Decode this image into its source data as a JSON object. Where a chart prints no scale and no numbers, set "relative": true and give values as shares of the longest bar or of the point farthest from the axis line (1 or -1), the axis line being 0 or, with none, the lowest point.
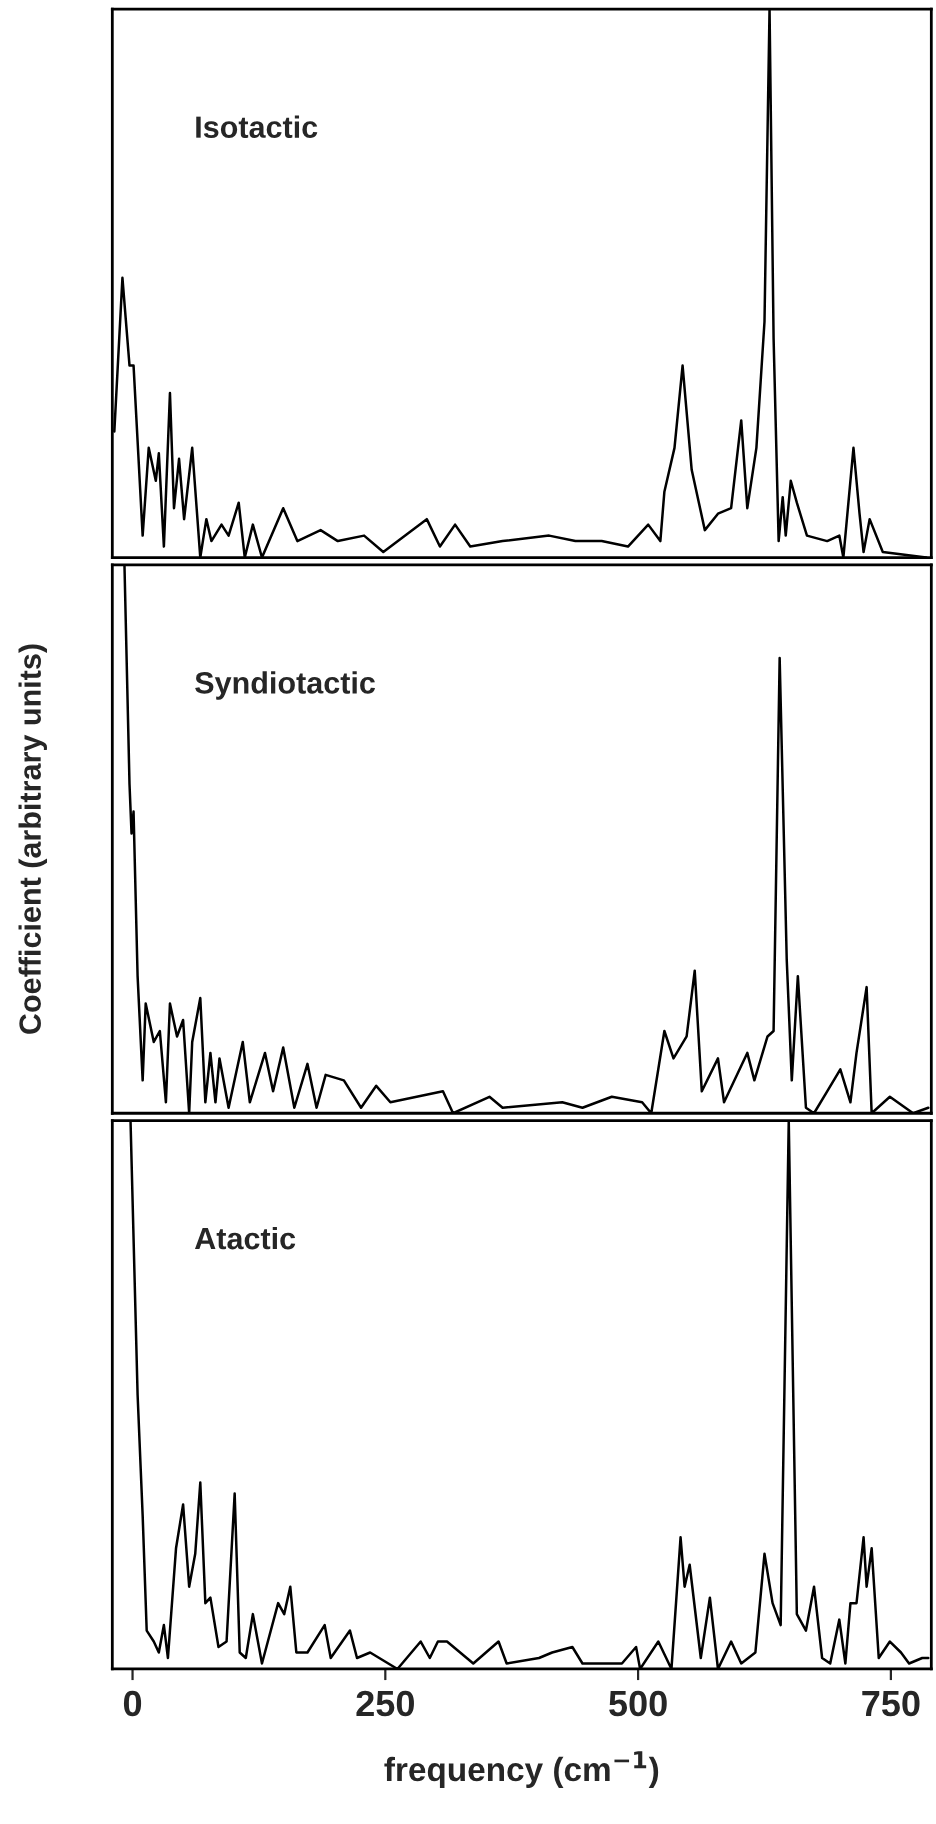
{
  "chart_data": [
    {
      "type": "line",
      "relative": true,
      "annotations": [
        "Isotactic"
      ],
      "xlim": [
        -20,
        790
      ],
      "tick_labels": false,
      "series": [
        {
          "color": "#000000",
          "x": [
            -18,
            -10,
            -3,
            1,
            10,
            16,
            23,
            26,
            31,
            37,
            41,
            46,
            51,
            59,
            67,
            73,
            78,
            88,
            95,
            105,
            111,
            119,
            128,
            149,
            163,
            186,
            203,
            229,
            248,
            291,
            304,
            319,
            334,
            366,
            412,
            438,
            464,
            490,
            510,
            522,
            526,
            536,
            544,
            553,
            566,
            579,
            592,
            602,
            608,
            617,
            625,
            630,
            634,
            639,
            643,
            646,
            651,
            657,
            667,
            687,
            699,
            703,
            713,
            719,
            723,
            729,
            742,
            785
          ],
          "values": [
            0.23,
            0.51,
            0.35,
            0.35,
            0.04,
            0.2,
            0.14,
            0.19,
            0.02,
            0.3,
            0.09,
            0.18,
            0.07,
            0.2,
            0,
            0.07,
            0.03,
            0.06,
            0.04,
            0.1,
            0,
            0.06,
            0,
            0.09,
            0.03,
            0.05,
            0.03,
            0.04,
            0.01,
            0.07,
            0.02,
            0.06,
            0.02,
            0.03,
            0.04,
            0.03,
            0.03,
            0.02,
            0.06,
            0.03,
            0.12,
            0.2,
            0.35,
            0.16,
            0.05,
            0.08,
            0.09,
            0.25,
            0.09,
            0.2,
            0.43,
            1.0,
            0.4,
            0.03,
            0.11,
            0.04,
            0.14,
            0.1,
            0.04,
            0.03,
            0.04,
            0,
            0.2,
            0.08,
            0.01,
            0.07,
            0.01,
            0
          ]
        }
      ]
    },
    {
      "type": "line",
      "relative": true,
      "annotations": [
        "Syndiotactic"
      ],
      "ylabel": "Coefficient (arbitrary units)",
      "xlim": [
        -20,
        790
      ],
      "tick_labels": false,
      "series": [
        {
          "color": "#000000",
          "x": [
            -8,
            -3,
            -1,
            1,
            5,
            10,
            13,
            21,
            27,
            33,
            37,
            44,
            50,
            56,
            59,
            67,
            72,
            77,
            82,
            86,
            95,
            109,
            116,
            131,
            139,
            149,
            160,
            173,
            182,
            191,
            209,
            226,
            241,
            255,
            281,
            307,
            317,
            353,
            366,
            425,
            445,
            474,
            504,
            513,
            526,
            535,
            548,
            556,
            563,
            579,
            585,
            608,
            615,
            628,
            634,
            640,
            647,
            652,
            658,
            666,
            674,
            687,
            700,
            710,
            716,
            726,
            731,
            749,
            772,
            787
          ],
          "values": [
            1.0,
            0.6,
            0.51,
            0.55,
            0.25,
            0.06,
            0.2,
            0.13,
            0.15,
            0.02,
            0.2,
            0.14,
            0.17,
            0,
            0.13,
            0.21,
            0.02,
            0.11,
            0.02,
            0.1,
            0.01,
            0.13,
            0.02,
            0.11,
            0.04,
            0.12,
            0.01,
            0.09,
            0.01,
            0.07,
            0.06,
            0.01,
            0.05,
            0.02,
            0.03,
            0.04,
            0,
            0.03,
            0.01,
            0.02,
            0.01,
            0.03,
            0.02,
            0,
            0.15,
            0.1,
            0.14,
            0.26,
            0.04,
            0.1,
            0.02,
            0.11,
            0.06,
            0.14,
            0.15,
            0.83,
            0.28,
            0.06,
            0.25,
            0.01,
            0,
            0.04,
            0.08,
            0.02,
            0.11,
            0.23,
            0,
            0.03,
            0,
            0.01
          ]
        }
      ]
    },
    {
      "type": "line",
      "relative": true,
      "annotations": [
        "Atactic"
      ],
      "xlabel": "frequency (cm$^{−1}$)",
      "xlim": [
        -20,
        790
      ],
      "xticks": [
        0,
        250,
        500,
        750
      ],
      "tick_labels": "x",
      "series": [
        {
          "color": "#000000",
          "x": [
            -2,
            5,
            10,
            14,
            21,
            26,
            31,
            35,
            43,
            50,
            56,
            62,
            67,
            72,
            77,
            85,
            93,
            101,
            106,
            112,
            119,
            128,
            144,
            150,
            156,
            162,
            173,
            190,
            196,
            215,
            222,
            235,
            262,
            285,
            294,
            302,
            311,
            337,
            362,
            370,
            402,
            415,
            435,
            445,
            484,
            498,
            502,
            520,
            533,
            542,
            546,
            551,
            562,
            571,
            579,
            592,
            602,
            616,
            625,
            633,
            641,
            649,
            657,
            666,
            674,
            682,
            690,
            699,
            705,
            710,
            716,
            723,
            726,
            731,
            738,
            749,
            760,
            768,
            781,
            787
          ],
          "values": [
            1.0,
            0.5,
            0.28,
            0.07,
            0.05,
            0.03,
            0.08,
            0.02,
            0.22,
            0.3,
            0.15,
            0.21,
            0.34,
            0.12,
            0.13,
            0.04,
            0.05,
            0.32,
            0.03,
            0.02,
            0.1,
            0.01,
            0.12,
            0.1,
            0.15,
            0.03,
            0.03,
            0.08,
            0.02,
            0.07,
            0.02,
            0.03,
            0,
            0.05,
            0.02,
            0.05,
            0.05,
            0.01,
            0.05,
            0.01,
            0.02,
            0.03,
            0.04,
            0.01,
            0.01,
            0.04,
            0,
            0.05,
            0,
            0.24,
            0.15,
            0.19,
            0.02,
            0.13,
            0,
            0.05,
            0.01,
            0.03,
            0.21,
            0.12,
            0.08,
            1.0,
            0.1,
            0.07,
            0.15,
            0.02,
            0.01,
            0.09,
            0.01,
            0.12,
            0.12,
            0.24,
            0.15,
            0.22,
            0.02,
            0.05,
            0.03,
            0.01,
            0.02,
            0.02
          ]
        }
      ]
    }
  ]
}
